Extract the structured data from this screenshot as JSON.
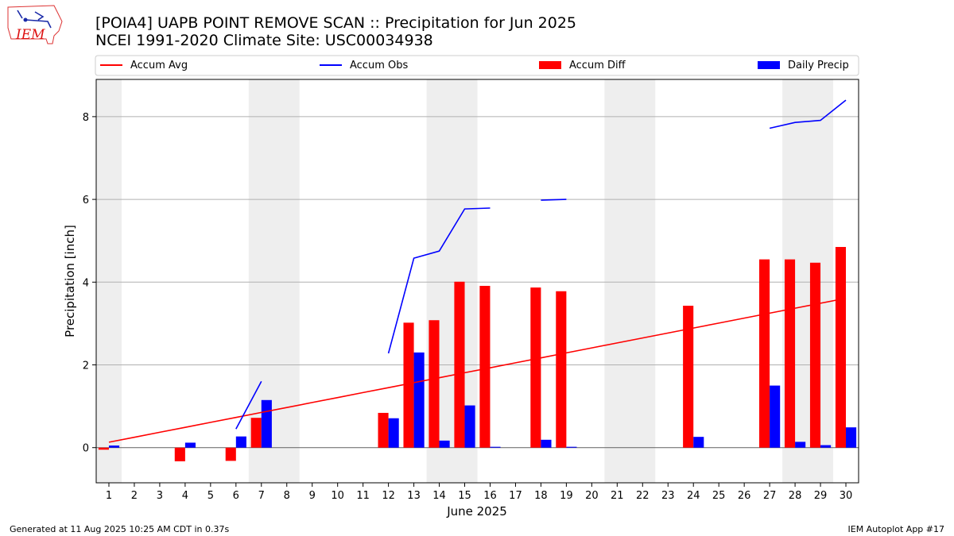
{
  "header": {
    "title_line1": "[POIA4] UAPB POINT REMOVE SCAN :: Precipitation for Jun 2025",
    "title_line2": "NCEI 1991-2020 Climate Site: USC00034938",
    "logo_text": "IEM"
  },
  "footer": {
    "generated": "Generated at 11 Aug 2025 10:25 AM CDT in 0.37s",
    "app": "IEM Autoplot App #17"
  },
  "chart_data": {
    "type": "bar",
    "title": "[POIA4] UAPB POINT REMOVE SCAN :: Precipitation for Jun 2025",
    "subtitle": "NCEI 1991-2020 Climate Site: USC00034938",
    "xlabel": "June 2025",
    "ylabel": "Precipitation [inch]",
    "xlim": [
      0.5,
      30.5
    ],
    "ylim": [
      -0.85,
      8.9
    ],
    "yticks": [
      0,
      2,
      4,
      6,
      8
    ],
    "days": [
      1,
      2,
      3,
      4,
      5,
      6,
      7,
      8,
      9,
      10,
      11,
      12,
      13,
      14,
      15,
      16,
      17,
      18,
      19,
      20,
      21,
      22,
      23,
      24,
      25,
      26,
      27,
      28,
      29,
      30
    ],
    "weekend_bands": [
      [
        0.5,
        1.5
      ],
      [
        6.5,
        8.5
      ],
      [
        13.5,
        15.5
      ],
      [
        20.5,
        22.5
      ],
      [
        27.5,
        29.5
      ]
    ],
    "grid": "horizontal",
    "legend_placement": "top",
    "series": [
      {
        "name": "Accum Avg",
        "kind": "line",
        "color": "#ff0000",
        "values": [
          0.13,
          0.25,
          0.37,
          0.49,
          0.61,
          0.73,
          0.85,
          0.97,
          1.09,
          1.21,
          1.33,
          1.45,
          1.57,
          1.69,
          1.81,
          1.93,
          2.05,
          2.17,
          2.29,
          2.41,
          2.53,
          2.65,
          2.77,
          2.89,
          3.01,
          3.13,
          3.25,
          3.37,
          3.49,
          3.61
        ]
      },
      {
        "name": "Accum Obs",
        "kind": "line",
        "color": "#0000ff",
        "values": [
          null,
          null,
          null,
          null,
          null,
          0.45,
          1.6,
          null,
          null,
          null,
          null,
          2.28,
          4.58,
          4.75,
          5.77,
          5.79,
          null,
          5.98,
          6.0,
          null,
          null,
          null,
          null,
          null,
          null,
          null,
          7.72,
          7.86,
          7.91,
          8.4
        ]
      },
      {
        "name": "Accum Diff",
        "kind": "bar",
        "color": "#ff0000",
        "values": [
          -0.05,
          null,
          null,
          -0.33,
          null,
          -0.32,
          0.72,
          null,
          null,
          null,
          null,
          0.84,
          3.02,
          3.08,
          4.01,
          3.91,
          null,
          3.87,
          3.78,
          null,
          null,
          null,
          null,
          3.43,
          null,
          null,
          4.55,
          4.55,
          4.47,
          4.85
        ]
      },
      {
        "name": "Daily Precip",
        "kind": "bar",
        "color": "#0000ff",
        "values": [
          0.05,
          null,
          null,
          0.12,
          null,
          0.27,
          1.15,
          null,
          null,
          null,
          null,
          0.71,
          2.3,
          0.17,
          1.02,
          0.02,
          null,
          0.19,
          0.02,
          null,
          null,
          null,
          null,
          0.26,
          null,
          null,
          1.5,
          0.14,
          0.06,
          0.49
        ]
      }
    ]
  }
}
